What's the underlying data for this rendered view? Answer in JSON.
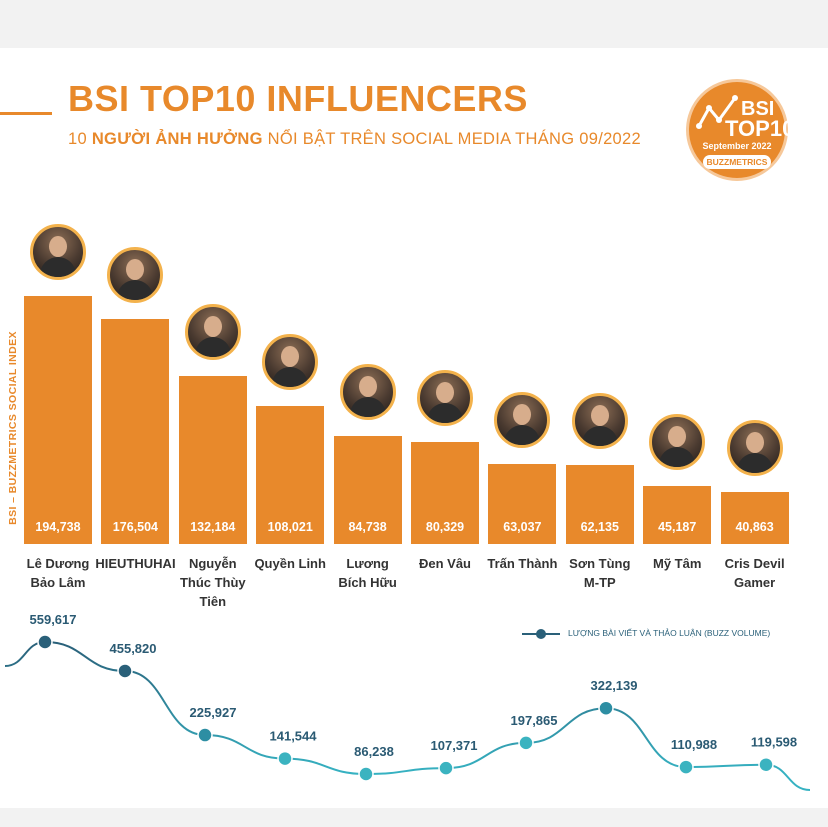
{
  "header": {
    "title": "BSI TOP10 INFLUENCERS",
    "subtitle_prefix": "10 ",
    "subtitle_bold": "NGƯỜI ẢNH HƯỞNG",
    "subtitle_rest": " NỔI BẬT TRÊN SOCIAL MEDIA THÁNG 09/2022"
  },
  "badge": {
    "line1": "BSI",
    "line2": "TOP10",
    "date": "September 2022",
    "brand": "BUZZMETRICS"
  },
  "colors": {
    "accent": "#e8892b",
    "line": "#2a6079",
    "line_light": "#36b2c2"
  },
  "chart_data": [
    {
      "type": "bar",
      "ylabel": "BSI – BUZZMETRICS SOCIAL INDEX",
      "ylim": [
        0,
        220000
      ],
      "categories": [
        [
          "Lê Dương",
          "Bảo Lâm"
        ],
        [
          "HIEUTHUHAI"
        ],
        [
          "Nguyễn",
          "Thúc Thùy",
          "Tiên"
        ],
        [
          "Quyền Linh"
        ],
        [
          "Lương",
          "Bích Hữu"
        ],
        [
          "Đen Vâu"
        ],
        [
          "Trấn Thành"
        ],
        [
          "Sơn Tùng",
          "M-TP"
        ],
        [
          "Mỹ Tâm"
        ],
        [
          "Cris Devil",
          "Gamer"
        ]
      ],
      "values": [
        194738,
        176504,
        132184,
        108021,
        84738,
        80329,
        63037,
        62135,
        45187,
        40863
      ],
      "labels": [
        "194,738",
        "176,504",
        "132,184",
        "108,021",
        "84,738",
        "80,329",
        "63,037",
        "62,135",
        "45,187",
        "40,863"
      ]
    },
    {
      "type": "line",
      "series_name": "LƯỢNG BÀI VIẾT VÀ THẢO LUẬN (BUZZ VOLUME)",
      "values": [
        559617,
        455820,
        225927,
        141544,
        86238,
        107371,
        197865,
        322139,
        110988,
        119598
      ],
      "labels": [
        "559,617",
        "455,820",
        "225,927",
        "141,544",
        "86,238",
        "107,371",
        "197,865",
        "322,139",
        "110,988",
        "119,598"
      ]
    }
  ]
}
